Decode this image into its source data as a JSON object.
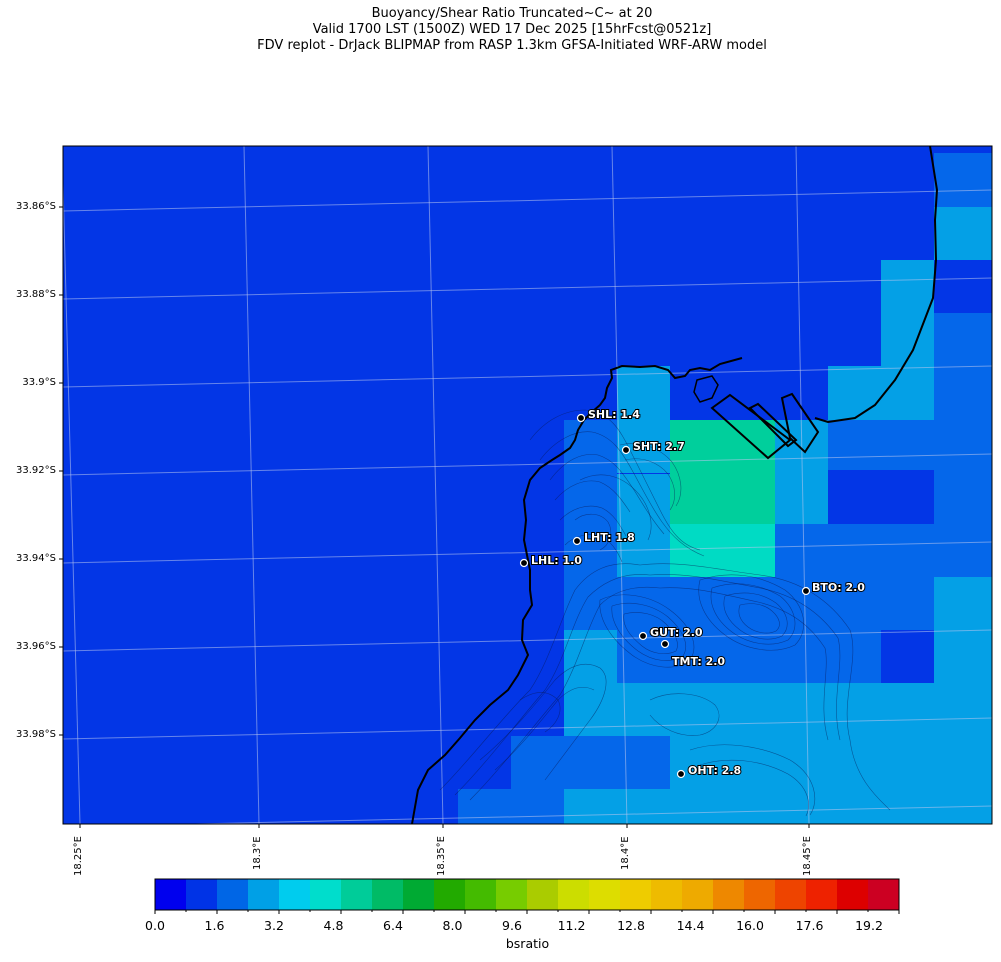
{
  "title": {
    "line1": "Buoyancy/Shear Ratio Truncated~C~    at 20",
    "line2": "Valid 1700 LST (1500Z) WED 17 Dec 2025 [15hrFcst@0521z]",
    "line3": "FDV replot - DrJack BLIPMAP from RASP 1.3km GFSA-Initiated WRF-ARW model"
  },
  "map": {
    "lat_ticks": [
      {
        "label": "33.86°S"
      },
      {
        "label": "33.88°S"
      },
      {
        "label": "33.9°S"
      },
      {
        "label": "33.92°S"
      },
      {
        "label": "33.94°S"
      },
      {
        "label": "33.96°S"
      },
      {
        "label": "33.98°S"
      }
    ],
    "lon_ticks": [
      {
        "label": "18.25°E"
      },
      {
        "label": "18.3°E"
      },
      {
        "label": "18.35°E"
      },
      {
        "label": "18.4°E"
      },
      {
        "label": "18.45°E"
      }
    ],
    "stations": [
      {
        "name": "SHL",
        "label": "SHL: 1.4",
        "value": 1.4
      },
      {
        "name": "SHT",
        "label": "SHT: 2.7",
        "value": 2.7
      },
      {
        "name": "LHT",
        "label": "LHT: 1.8",
        "value": 1.8
      },
      {
        "name": "LHL",
        "label": "LHL: 1.0",
        "value": 1.0
      },
      {
        "name": "BTO",
        "label": "BTO: 2.0",
        "value": 2.0
      },
      {
        "name": "GUT",
        "label": "GUT: 2.0",
        "value": 2.0
      },
      {
        "name": "TMT",
        "label": "TMT: 2.0",
        "value": 2.0
      },
      {
        "name": "OHT",
        "label": "OHT: 2.8",
        "value": 2.8
      }
    ]
  },
  "colorbar": {
    "title": "bsratio",
    "tick_labels": [
      "0.0",
      "1.6",
      "3.2",
      "4.8",
      "6.4",
      "8.0",
      "9.6",
      "11.2",
      "12.8",
      "14.4",
      "16.0",
      "17.6",
      "19.2"
    ],
    "colors": [
      "#0000ee",
      "#0033e6",
      "#0066e6",
      "#00a0e6",
      "#00ccee",
      "#00ddcc",
      "#00cc99",
      "#00bb66",
      "#00aa33",
      "#22aa00",
      "#44bb00",
      "#77cc00",
      "#aacc00",
      "#ccdd00",
      "#dddd00",
      "#eecc00",
      "#eebb00",
      "#eeaa00",
      "#ee8800",
      "#ee6600",
      "#ee4400",
      "#ee2200",
      "#dd0000",
      "#cc0022"
    ]
  }
}
